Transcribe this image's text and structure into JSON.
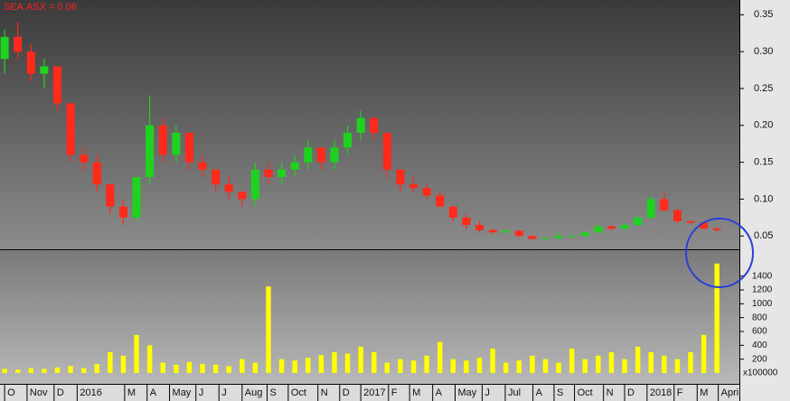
{
  "chart_data": {
    "type": "candlestick",
    "title": "SEA.ASX = 0.06",
    "x": [
      0,
      2,
      4,
      6,
      8,
      10,
      12,
      14,
      16,
      18,
      20,
      22,
      24,
      26,
      28,
      30,
      32,
      34,
      36,
      38,
      40,
      42,
      44,
      46,
      48,
      50,
      52,
      54,
      56,
      58,
      60,
      62,
      64,
      66,
      68,
      70,
      72,
      74,
      76,
      78,
      80,
      82,
      84,
      86,
      88,
      90,
      92,
      94,
      96,
      98,
      100,
      102,
      104,
      106,
      108
    ],
    "open": [
      0.29,
      0.32,
      0.3,
      0.27,
      0.28,
      0.23,
      0.16,
      0.15,
      0.12,
      0.09,
      0.075,
      0.13,
      0.2,
      0.16,
      0.19,
      0.15,
      0.14,
      0.12,
      0.11,
      0.1,
      0.14,
      0.13,
      0.14,
      0.15,
      0.17,
      0.15,
      0.17,
      0.19,
      0.21,
      0.19,
      0.14,
      0.12,
      0.115,
      0.105,
      0.09,
      0.075,
      0.065,
      0.058,
      0.055,
      0.057,
      0.05,
      0.046,
      0.047,
      0.05,
      0.05,
      0.055,
      0.063,
      0.06,
      0.065,
      0.075,
      0.1,
      0.085,
      0.07,
      0.068,
      0.06
    ],
    "high": [
      0.33,
      0.34,
      0.31,
      0.29,
      0.28,
      0.23,
      0.17,
      0.16,
      0.12,
      0.1,
      0.13,
      0.24,
      0.21,
      0.2,
      0.19,
      0.16,
      0.14,
      0.13,
      0.11,
      0.15,
      0.15,
      0.15,
      0.16,
      0.18,
      0.17,
      0.18,
      0.2,
      0.22,
      0.21,
      0.19,
      0.14,
      0.13,
      0.12,
      0.11,
      0.09,
      0.08,
      0.07,
      0.06,
      0.06,
      0.058,
      0.051,
      0.049,
      0.055,
      0.052,
      0.057,
      0.066,
      0.065,
      0.067,
      0.078,
      0.105,
      0.11,
      0.087,
      0.072,
      0.069,
      0.062
    ],
    "low": [
      0.27,
      0.29,
      0.26,
      0.25,
      0.22,
      0.15,
      0.14,
      0.11,
      0.08,
      0.065,
      0.07,
      0.12,
      0.15,
      0.15,
      0.14,
      0.13,
      0.11,
      0.1,
      0.09,
      0.09,
      0.12,
      0.12,
      0.13,
      0.14,
      0.14,
      0.14,
      0.16,
      0.18,
      0.18,
      0.13,
      0.11,
      0.11,
      0.1,
      0.09,
      0.07,
      0.06,
      0.055,
      0.053,
      0.054,
      0.049,
      0.045,
      0.045,
      0.046,
      0.047,
      0.049,
      0.054,
      0.058,
      0.058,
      0.063,
      0.073,
      0.083,
      0.068,
      0.066,
      0.059,
      0.056
    ],
    "close": [
      0.32,
      0.3,
      0.27,
      0.28,
      0.23,
      0.16,
      0.15,
      0.12,
      0.09,
      0.075,
      0.13,
      0.2,
      0.16,
      0.19,
      0.15,
      0.14,
      0.12,
      0.11,
      0.1,
      0.14,
      0.13,
      0.14,
      0.15,
      0.17,
      0.15,
      0.17,
      0.19,
      0.21,
      0.19,
      0.14,
      0.12,
      0.115,
      0.105,
      0.09,
      0.075,
      0.065,
      0.058,
      0.055,
      0.057,
      0.05,
      0.046,
      0.047,
      0.05,
      0.05,
      0.055,
      0.063,
      0.06,
      0.065,
      0.075,
      0.1,
      0.085,
      0.07,
      0.068,
      0.06,
      0.058
    ],
    "volume": [
      60,
      50,
      70,
      60,
      80,
      100,
      70,
      130,
      300,
      250,
      550,
      400,
      150,
      120,
      160,
      130,
      120,
      100,
      200,
      150,
      1250,
      200,
      180,
      220,
      260,
      300,
      280,
      380,
      300,
      150,
      200,
      180,
      250,
      450,
      200,
      180,
      220,
      350,
      150,
      180,
      250,
      200,
      150,
      350,
      200,
      250,
      300,
      200,
      380,
      300,
      250,
      200,
      300,
      550,
      1580
    ],
    "volume_unit": "x100000",
    "xlim": [
      -0.7,
      111.4
    ],
    "xticks": [
      {
        "value": 0,
        "label": "O"
      },
      {
        "value": 3.4,
        "label": "Nov"
      },
      {
        "value": 7.5,
        "label": "D"
      },
      {
        "value": 11,
        "label": "2016"
      },
      {
        "value": 18.2,
        "label": "M"
      },
      {
        "value": 21.6,
        "label": "A"
      },
      {
        "value": 25,
        "label": "May"
      },
      {
        "value": 29,
        "label": "J"
      },
      {
        "value": 32.5,
        "label": "J"
      },
      {
        "value": 36,
        "label": "Aug"
      },
      {
        "value": 39.8,
        "label": "S"
      },
      {
        "value": 43,
        "label": "Oct"
      },
      {
        "value": 47.5,
        "label": "N"
      },
      {
        "value": 50.8,
        "label": "D"
      },
      {
        "value": 54,
        "label": "2017"
      },
      {
        "value": 58.2,
        "label": "F"
      },
      {
        "value": 61.4,
        "label": "M"
      },
      {
        "value": 64.9,
        "label": "A"
      },
      {
        "value": 68.3,
        "label": "May"
      },
      {
        "value": 72.4,
        "label": "J"
      },
      {
        "value": 75.9,
        "label": "Jul"
      },
      {
        "value": 80.1,
        "label": "A"
      },
      {
        "value": 83.3,
        "label": "S"
      },
      {
        "value": 86.4,
        "label": "Oct"
      },
      {
        "value": 90.8,
        "label": "N"
      },
      {
        "value": 94,
        "label": "D"
      },
      {
        "value": 97.4,
        "label": "2018"
      },
      {
        "value": 101.5,
        "label": "F"
      },
      {
        "value": 105,
        "label": "M"
      },
      {
        "value": 108.2,
        "label": "April"
      }
    ],
    "ylim": [
      0.032,
      0.37
    ],
    "yticks": [
      0.05,
      {
        "value": 0.1,
        "label": "0.10"
      },
      0.15,
      {
        "value": 0.2,
        "label": "0.20"
      },
      0.25,
      {
        "value": 0.3,
        "label": "0.30"
      },
      0.35
    ],
    "volume_ylim": [
      0,
      1800
    ],
    "volume_yticks": [
      200,
      400,
      600,
      800,
      1000,
      1200,
      1400
    ],
    "up_color": "#1fd21f",
    "down_color": "#ff2a1a",
    "volume_color": "#ffff00"
  }
}
